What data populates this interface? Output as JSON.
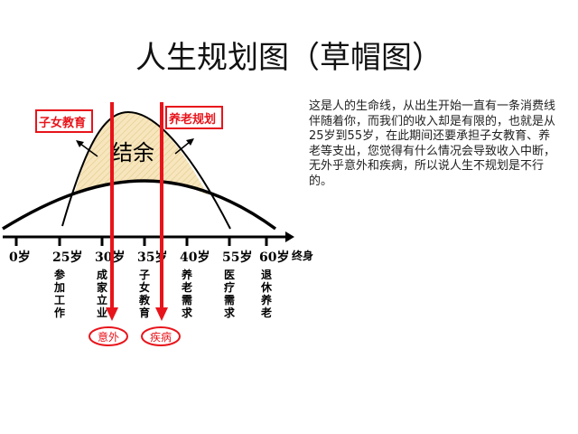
{
  "title": "人生规划图（草帽图）",
  "description": "这是人的生命线，从出生开始一直有一条消费线伴随着你，而我们的收入却是有限的，也就是从25岁到55岁，在此期间还要承担子女教育、养老等支出，您觉得有什么情况会导致收入中断，无外乎意外和疾病，所以说人生不规划是不行的。",
  "diagram": {
    "surplus_label": "结余",
    "left_box": "子女教育",
    "right_box": "养老规划",
    "axis_end_label": "终身",
    "ticks": [
      {
        "age": "0岁",
        "event": ""
      },
      {
        "age": "25岁",
        "event": "参加工作"
      },
      {
        "age": "30岁",
        "event": "成家立业"
      },
      {
        "age": "35岁",
        "event": "子女教育"
      },
      {
        "age": "40岁",
        "event": "养老需求"
      },
      {
        "age": "55岁",
        "event": "医疗需求"
      },
      {
        "age": "60岁",
        "event": "退休养老"
      }
    ],
    "risks": [
      "意外",
      "疾病"
    ],
    "colors": {
      "red": "#e8141b",
      "fill": "#f7e6bd",
      "line": "#000000"
    }
  }
}
